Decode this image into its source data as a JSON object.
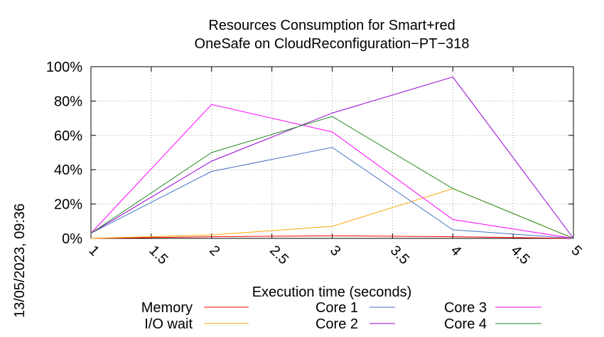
{
  "chart_data": {
    "type": "line",
    "title": "Resources Consumption for Smart+red",
    "subtitle": "OneSafe on CloudReconfiguration−PT−318",
    "xlabel": "Execution time (seconds)",
    "ylabel": "",
    "timestamp": "13/05/2023, 09:36",
    "xlim": [
      1,
      5
    ],
    "ylim": [
      0,
      100
    ],
    "x_ticks": [
      "1",
      "1.5",
      "2",
      "2.5",
      "3",
      "3.5",
      "4",
      "4.5",
      "5"
    ],
    "y_ticks": [
      "0%",
      "20%",
      "40%",
      "60%",
      "80%",
      "100%"
    ],
    "grid": true,
    "legend_position": "bottom",
    "x": [
      1,
      2,
      3,
      4,
      5
    ],
    "series": [
      {
        "name": "Memory",
        "color": "#ff0000",
        "values": [
          0,
          1,
          1.5,
          1,
          0
        ]
      },
      {
        "name": "I/O wait",
        "color": "#ffa500",
        "values": [
          0,
          2,
          7,
          29,
          0
        ]
      },
      {
        "name": "Core 1",
        "color": "#4472c4",
        "values": [
          3,
          39,
          53,
          5,
          0
        ]
      },
      {
        "name": "Core 2",
        "color": "#9400d3",
        "values": [
          3,
          45,
          73,
          94,
          0
        ]
      },
      {
        "name": "Core 3",
        "color": "#ff00ff",
        "values": [
          3,
          78,
          62,
          11,
          0
        ]
      },
      {
        "name": "Core 4",
        "color": "#228b22",
        "values": [
          3,
          50,
          71,
          29,
          0
        ]
      }
    ]
  }
}
